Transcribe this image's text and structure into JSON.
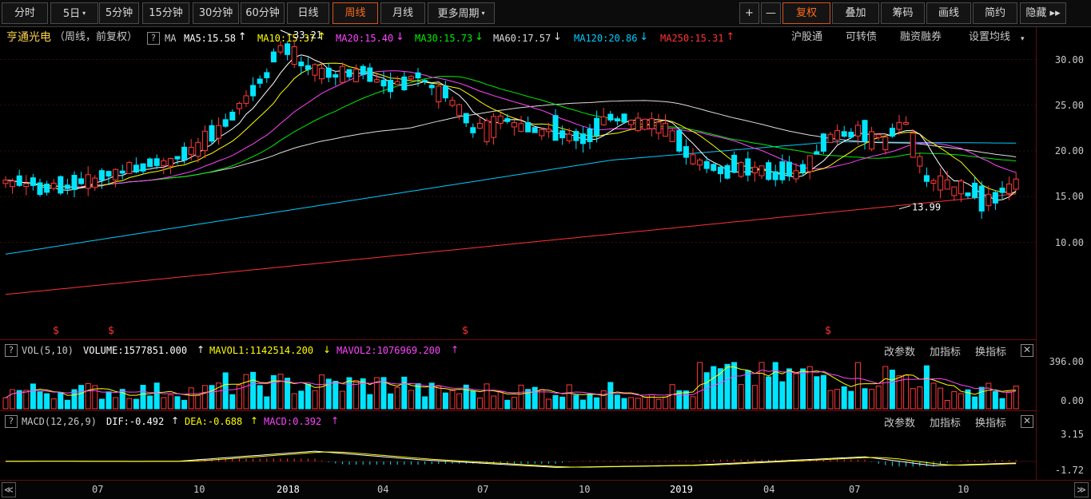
{
  "toolbar": {
    "period_buttons": [
      {
        "label": "分时"
      },
      {
        "label": "5日",
        "caret": "▾"
      },
      {
        "label": "5分钟"
      },
      {
        "label": "15分钟"
      },
      {
        "label": "30分钟"
      },
      {
        "label": "60分钟"
      },
      {
        "label": "日线"
      },
      {
        "label": "周线",
        "active": true
      },
      {
        "label": "月线"
      },
      {
        "label": "更多周期",
        "caret": "▾"
      }
    ],
    "right_buttons": [
      {
        "label": "+",
        "name": "zoom-in-button"
      },
      {
        "label": "—",
        "name": "zoom-out-button"
      },
      {
        "label": "复权",
        "caret": "▾",
        "name": "adjust-button"
      },
      {
        "label": "叠加",
        "caret": "▾",
        "name": "overlay-button"
      },
      {
        "label": "筹码",
        "name": "chips-button"
      },
      {
        "label": "画线",
        "name": "draw-line-button"
      },
      {
        "label": "简约",
        "name": "simple-button"
      },
      {
        "label": "隐藏 ▸▸",
        "name": "hide-button"
      }
    ]
  },
  "title": {
    "stock_name": "亨通光电",
    "period_text": "（周线，前复权）",
    "help": "?",
    "ma_label": "MA",
    "ma_items": [
      {
        "text": "MA5:15.58",
        "arrow": "↑",
        "color": "#ffffff"
      },
      {
        "text": "MA10:15.37",
        "arrow": "↑",
        "color": "#ffff00"
      },
      {
        "text": "MA20:15.40",
        "arrow": "↓",
        "color": "#ff44ff"
      },
      {
        "text": "MA30:15.73",
        "arrow": "↓",
        "color": "#00ee00"
      },
      {
        "text": "MA60:17.57",
        "arrow": "↓",
        "color": "#dddddd"
      },
      {
        "text": "MA120:20.86",
        "arrow": "↓",
        "color": "#00ccff"
      },
      {
        "text": "MA250:15.31",
        "arrow": "↑",
        "color": "#ff3333"
      }
    ],
    "right_links": [
      "沪股通",
      "可转债",
      "融资融券",
      "设置均线"
    ],
    "settings_caret": "▾"
  },
  "price_axis": [
    "30.00",
    "25.00",
    "20.00",
    "15.00",
    "10.00"
  ],
  "annotations": {
    "high": "33.21",
    "low": "13.99",
    "marker": "$"
  },
  "volume_panel": {
    "help": "?",
    "label": "VOL(5,10)",
    "volume": "VOLUME:1577851.000",
    "volume_arrow": "↑",
    "mavol1": "MAVOL1:1142514.200",
    "mavol1_arrow": "↓",
    "mavol2": "MAVOL2:1076969.200",
    "mavol2_arrow": "↑",
    "axis": [
      "396.00",
      "0.00"
    ]
  },
  "macd_panel": {
    "help": "?",
    "label": "MACD(12,26,9)",
    "dif": "DIF:-0.492",
    "dif_arrow": "↑",
    "dea": "DEA:-0.688",
    "dea_arrow": "↑",
    "macd": "MACD:0.392",
    "macd_arrow": "↑",
    "axis": [
      "3.15",
      "-1.72"
    ]
  },
  "panel_links": {
    "params": "改参数",
    "add": "加指标",
    "switch": "换指标",
    "close": "✕"
  },
  "x_axis": [
    {
      "label": "07",
      "year": false
    },
    {
      "label": "10",
      "year": false
    },
    {
      "label": "2018",
      "year": true
    },
    {
      "label": "04",
      "year": false
    },
    {
      "label": "07",
      "year": false
    },
    {
      "label": "10",
      "year": false
    },
    {
      "label": "2019",
      "year": true
    },
    {
      "label": "04",
      "year": false
    },
    {
      "label": "07",
      "year": false
    },
    {
      "label": "10",
      "year": false
    }
  ],
  "nav": {
    "left": "≪",
    "right": "≫"
  },
  "colors": {
    "up": "#ff3a3a",
    "down": "#00e5ff",
    "ma5": "#ffffff",
    "ma10": "#ffff00",
    "ma20": "#ff44ff",
    "ma30": "#00ee00",
    "ma60": "#dddddd",
    "ma120": "#00ccff",
    "ma250": "#ff3333"
  }
}
